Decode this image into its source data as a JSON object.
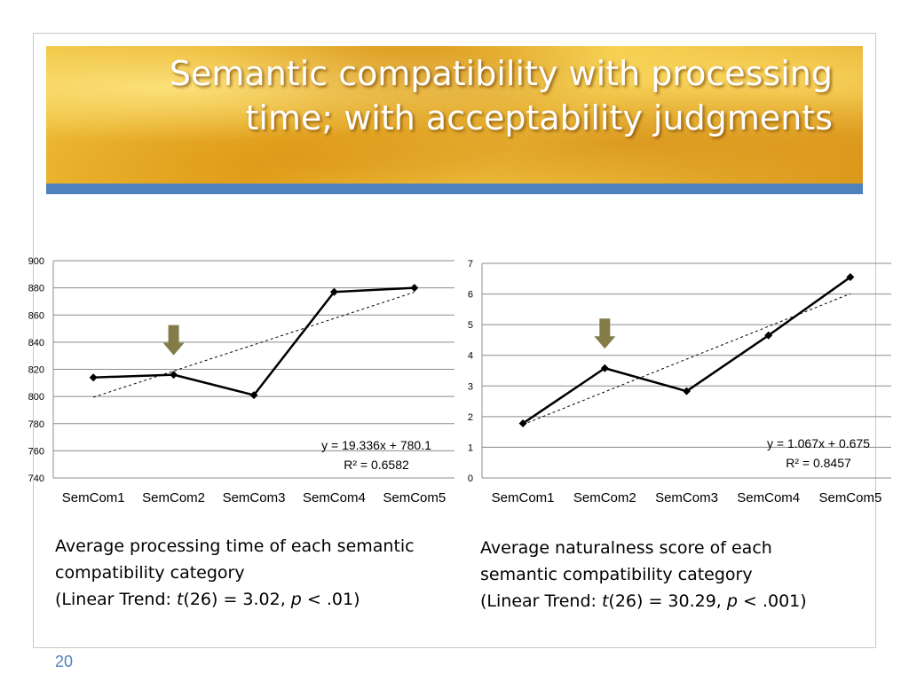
{
  "slide": {
    "title_lines": [
      "Semantic compatibility with processing",
      "time; with acceptability judgments"
    ],
    "page_number": "20",
    "accent_color": "#4f81bd"
  },
  "chart_data": [
    {
      "type": "line",
      "categories": [
        "SemCom1",
        "SemCom2",
        "SemCom3",
        "SemCom4",
        "SemCom5"
      ],
      "series": [
        {
          "values": [
            814,
            816,
            801,
            877,
            880
          ]
        }
      ],
      "trendline": {
        "type": "linear",
        "slope": 19.336,
        "intercept": 780.1
      },
      "ylim": [
        740,
        900
      ],
      "yticks": [
        740,
        760,
        780,
        800,
        820,
        840,
        860,
        880,
        900
      ],
      "equation_label": "y = 19.336x + 780.1",
      "r2_label": "R² = 0.6582",
      "highlight_category": "SemCom2",
      "grid": true,
      "caption_lines": [
        "Average processing time of each semantic",
        "compatibility category",
        {
          "prefix": "(Linear Trend: ",
          "stat": "t",
          "df": "(26) = 3.02, ",
          "p": "p",
          "rest": " < .01)"
        }
      ]
    },
    {
      "type": "line",
      "categories": [
        "SemCom1",
        "SemCom2",
        "SemCom3",
        "SemCom4",
        "SemCom5"
      ],
      "series": [
        {
          "values": [
            1.78,
            3.58,
            2.83,
            4.65,
            6.55
          ]
        }
      ],
      "trendline": {
        "type": "linear",
        "slope": 1.067,
        "intercept": 0.675
      },
      "ylim": [
        0,
        7
      ],
      "yticks": [
        0,
        1,
        2,
        3,
        4,
        5,
        6,
        7
      ],
      "equation_label": "y = 1.067x + 0.675",
      "r2_label": "R² = 0.8457",
      "highlight_category": "SemCom2",
      "grid": true,
      "caption_lines": [
        "Average naturalness score of each",
        "semantic compatibility category",
        {
          "prefix": "(Linear Trend: ",
          "stat": "t",
          "df": "(26) = 30.29, ",
          "p": "p",
          "rest": " < .001)"
        }
      ]
    }
  ]
}
